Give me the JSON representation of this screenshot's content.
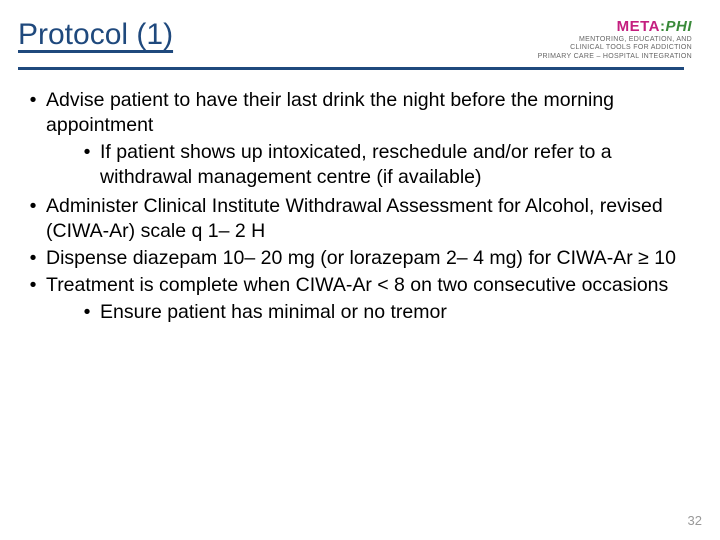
{
  "title": "Protocol (1)",
  "logo": {
    "meta": "META",
    "sep": ":",
    "phi": "PHI",
    "tagline1": "MENTORING, EDUCATION, AND",
    "tagline2": "CLINICAL TOOLS FOR ADDICTION",
    "tagline3": "PRIMARY CARE – HOSPITAL INTEGRATION"
  },
  "bullets": {
    "b1": "Advise patient to have their last drink the night before the morning appointment",
    "b1a": "If patient shows up intoxicated, reschedule and/or refer to a withdrawal management centre (if available)",
    "b2": "Administer Clinical Institute Withdrawal Assessment for Alcohol, revised (CIWA-Ar) scale q 1– 2 H",
    "b3": "Dispense diazepam 10– 20 mg (or lorazepam 2– 4 mg) for CIWA-Ar ≥ 10",
    "b4": "Treatment is complete when CIWA-Ar < 8 on two consecutive occasions",
    "b4a": "Ensure patient has minimal or no tremor"
  },
  "pagenum": "32",
  "colors": {
    "title": "#1f497d",
    "rule": "#1f497d",
    "text": "#000000",
    "logo_meta": "#c41e7f",
    "logo_phi": "#3a8a3a",
    "pagenum": "#999999",
    "background": "#ffffff"
  },
  "typography": {
    "title_fontsize": 30,
    "body_fontsize": 19.5,
    "pagenum_fontsize": 13,
    "logo_main_fontsize": 15,
    "line_height": 1.28
  },
  "bullet_glyph": "•"
}
